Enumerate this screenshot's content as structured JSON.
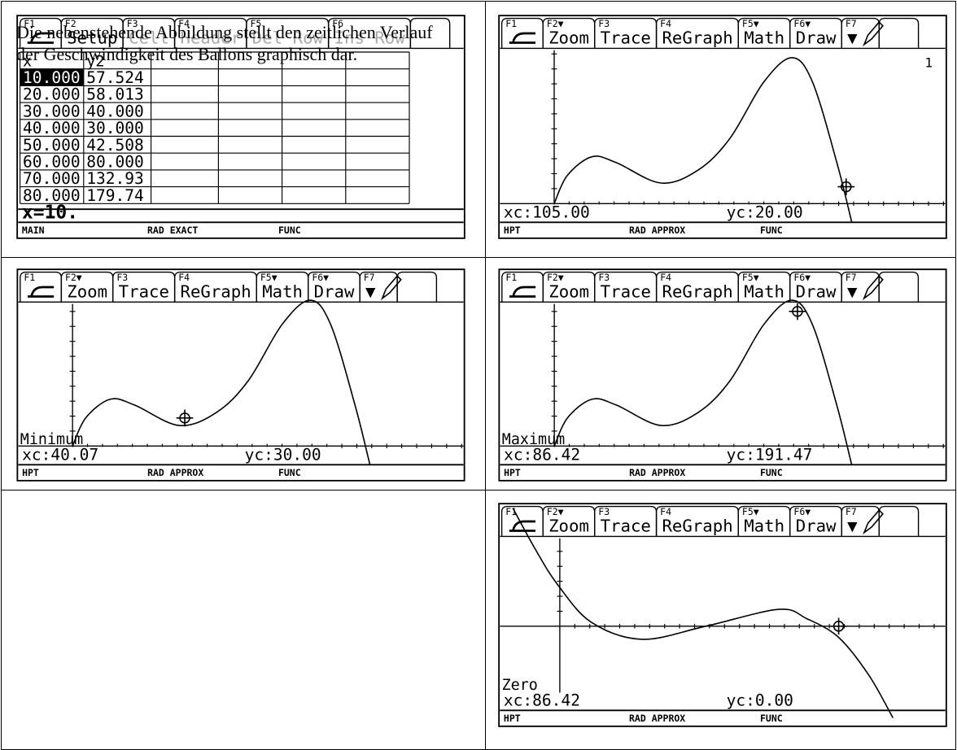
{
  "screens": [
    {
      "toolbar": [
        {
          "key": "F1"
        },
        {
          "key": "F2",
          "label": "Setup"
        },
        {
          "key": "F3",
          "label": "Cell",
          "dim": true
        },
        {
          "key": "F4",
          "label": "Header",
          "dim": true
        },
        {
          "key": "F5",
          "label": "Del Row",
          "dim": true
        },
        {
          "key": "F6",
          "label": "Ins Row",
          "dim": true
        }
      ],
      "table": {
        "header": [
          "x",
          "y2"
        ],
        "rows": [
          [
            "10.000",
            "57.524"
          ],
          [
            "20.000",
            "58.013"
          ],
          [
            "30.000",
            "40.000"
          ],
          [
            "40.000",
            "30.000"
          ],
          [
            "50.000",
            "42.508"
          ],
          [
            "60.000",
            "80.000"
          ],
          [
            "70.000",
            "132.93"
          ],
          [
            "80.000",
            "179.74"
          ]
        ]
      },
      "entry": "x=10.",
      "status": [
        "MAIN",
        "RAD EXACT",
        "FUNC"
      ]
    },
    {
      "toolbar": [
        {
          "key": "F1"
        },
        {
          "key": "F2▼",
          "label": "Zoom"
        },
        {
          "key": "F3",
          "label": "Trace"
        },
        {
          "key": "F4",
          "label": "ReGraph"
        },
        {
          "key": "F5▼",
          "label": "Math"
        },
        {
          "key": "F6▼",
          "label": "Draw"
        },
        {
          "key": "F7",
          "label": "▼"
        }
      ],
      "marker": "1",
      "xc": "xc:105.00",
      "yc": "yc:20.00",
      "status": [
        "HPT",
        "RAD APPROX",
        "FUNC"
      ]
    },
    {
      "toolbar": [
        {
          "key": "F1"
        },
        {
          "key": "F2▼",
          "label": "Zoom"
        },
        {
          "key": "F3",
          "label": "Trace"
        },
        {
          "key": "F4",
          "label": "ReGraph"
        },
        {
          "key": "F5▼",
          "label": "Math"
        },
        {
          "key": "F6▼",
          "label": "Draw"
        },
        {
          "key": "F7",
          "label": "▼"
        }
      ],
      "mode": "Minimum",
      "xc": "xc:40.07",
      "yc": "yc:30.00",
      "status": [
        "HPT",
        "RAD APPROX",
        "FUNC"
      ]
    },
    {
      "toolbar": [
        {
          "key": "F1"
        },
        {
          "key": "F2▼",
          "label": "Zoom"
        },
        {
          "key": "F3",
          "label": "Trace"
        },
        {
          "key": "F4",
          "label": "ReGraph"
        },
        {
          "key": "F5▼",
          "label": "Math"
        },
        {
          "key": "F6▼",
          "label": "Draw"
        },
        {
          "key": "F7",
          "label": "▼"
        }
      ],
      "mode": "Maximum",
      "xc": "xc:86.42",
      "yc": "yc:191.47",
      "status": [
        "HPT",
        "RAD APPROX",
        "FUNC"
      ]
    },
    {
      "toolbar": [
        {
          "key": "F1"
        },
        {
          "key": "F2▼",
          "label": "Zoom"
        },
        {
          "key": "F3",
          "label": "Trace"
        },
        {
          "key": "F4",
          "label": "ReGraph"
        },
        {
          "key": "F5▼",
          "label": "Math"
        },
        {
          "key": "F6▼",
          "label": "Draw"
        },
        {
          "key": "F7",
          "label": "▼"
        }
      ],
      "mode": "Zero",
      "xc": "xc:86.42",
      "yc": "yc:0.00",
      "status": [
        "HPT",
        "RAD APPROX",
        "FUNC"
      ]
    }
  ],
  "text": "Die nebenstehende Abbildung stellt den zeitlichen Verlauf der Geschwindigkeit des Ballons graphisch dar."
}
